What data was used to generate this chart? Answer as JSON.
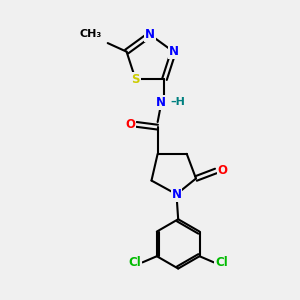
{
  "bg_color": "#f0f0f0",
  "bond_color": "#000000",
  "line_width": 1.5,
  "atom_colors": {
    "N": "#0000ff",
    "O": "#ff0000",
    "S": "#cccc00",
    "Cl": "#00bb00",
    "H": "#008080",
    "C": "#000000"
  },
  "font_size": 8.5,
  "title": ""
}
